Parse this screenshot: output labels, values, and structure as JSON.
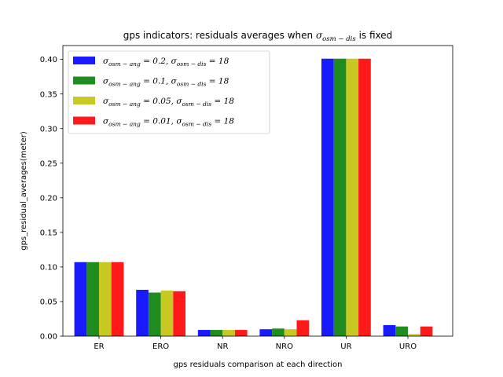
{
  "chart_data": {
    "type": "bar",
    "title_parts": {
      "prefix": "gps indicators: residuals averages when ",
      "sigma": "σ",
      "sub": "osm − dis",
      "suffix": " is fixed"
    },
    "xlabel": "gps residuals comparison at each direction",
    "ylabel": "gps_residual_averages(meter)",
    "ylim": [
      0,
      0.42
    ],
    "yticks": [
      "0.00",
      "0.05",
      "0.10",
      "0.15",
      "0.20",
      "0.25",
      "0.30",
      "0.35",
      "0.40"
    ],
    "categories": [
      "ER",
      "ERO",
      "NR",
      "NRO",
      "UR",
      "URO"
    ],
    "legend_position": "upper-left",
    "series": [
      {
        "ang": "0.2",
        "dis": "18",
        "color": "#1a1aff",
        "values": [
          0.107,
          0.067,
          0.009,
          0.01,
          0.401,
          0.016
        ]
      },
      {
        "ang": "0.1",
        "dis": "18",
        "color": "#1e8c1e",
        "values": [
          0.107,
          0.063,
          0.009,
          0.011,
          0.401,
          0.014
        ]
      },
      {
        "ang": "0.05",
        "dis": "18",
        "color": "#c8c822",
        "values": [
          0.107,
          0.066,
          0.009,
          0.01,
          0.401,
          0.003
        ]
      },
      {
        "ang": "0.01",
        "dis": "18",
        "color": "#ff1a1a",
        "values": [
          0.107,
          0.065,
          0.009,
          0.023,
          0.401,
          0.014
        ]
      }
    ]
  }
}
